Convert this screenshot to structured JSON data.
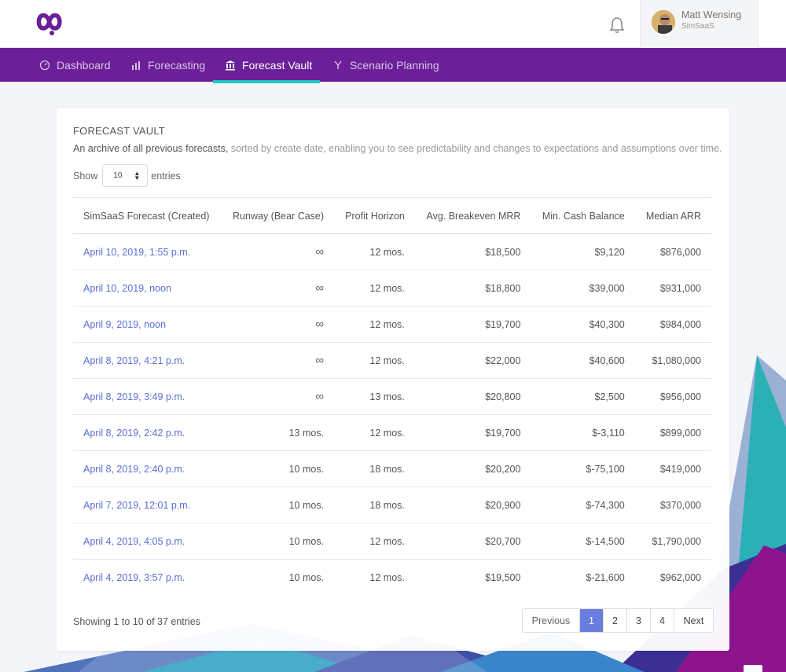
{
  "header": {
    "user_name": "Matt Wensing",
    "user_org": "SimSaaS",
    "logo_icon": "infinity-logo-icon",
    "notification_icon": "bell-icon"
  },
  "nav": {
    "items": [
      {
        "label": "Dashboard",
        "icon": "gauge-icon",
        "active": false
      },
      {
        "label": "Forecasting",
        "icon": "chart-icon",
        "active": false
      },
      {
        "label": "Forecast Vault",
        "icon": "bank-icon",
        "active": true
      },
      {
        "label": "Scenario Planning",
        "icon": "fork-icon",
        "active": false
      }
    ]
  },
  "vault": {
    "title": "FORECAST VAULT",
    "desc_lead": "An archive of all previous forecasts,",
    "desc_rest": " sorted by create date, enabling you to see predictability and changes to expectations and assumptions over time.",
    "show_label": "Show",
    "entries_value": "10",
    "entries_label": "entries",
    "columns": [
      "SimSaaS Forecast (Created)",
      "Runway (Bear Case)",
      "Profit Horizon",
      "Avg. Breakeven MRR",
      "Min. Cash Balance",
      "Median ARR"
    ],
    "rows": [
      [
        "April 10, 2019, 1:55 p.m.",
        "∞",
        "12 mos.",
        "$18,500",
        "$9,120",
        "$876,000"
      ],
      [
        "April 10, 2019, noon",
        "∞",
        "12 mos.",
        "$18,800",
        "$39,000",
        "$931,000"
      ],
      [
        "April 9, 2019, noon",
        "∞",
        "12 mos.",
        "$19,700",
        "$40,300",
        "$984,000"
      ],
      [
        "April 8, 2019, 4:21 p.m.",
        "∞",
        "12 mos.",
        "$22,000",
        "$40,600",
        "$1,080,000"
      ],
      [
        "April 8, 2019, 3:49 p.m.",
        "∞",
        "13 mos.",
        "$20,800",
        "$2,500",
        "$956,000"
      ],
      [
        "April 8, 2019, 2:42 p.m.",
        "13 mos.",
        "12 mos.",
        "$19,700",
        "$-3,110",
        "$899,000"
      ],
      [
        "April 8, 2019, 2:40 p.m.",
        "10 mos.",
        "18 mos.",
        "$20,200",
        "$-75,100",
        "$419,000"
      ],
      [
        "April 7, 2019, 12:01 p.m.",
        "10 mos.",
        "18 mos.",
        "$20,900",
        "$-74,300",
        "$370,000"
      ],
      [
        "April 4, 2019, 4:05 p.m.",
        "10 mos.",
        "12 mos.",
        "$20,700",
        "$-14,500",
        "$1,790,000"
      ],
      [
        "April 4, 2019, 3:57 p.m.",
        "10 mos.",
        "12 mos.",
        "$19,500",
        "$-21,600",
        "$962,000"
      ]
    ],
    "showing_text": "Showing 1 to 10 of 37 entries",
    "pagination": {
      "previous": "Previous",
      "pages": [
        "1",
        "2",
        "3",
        "4"
      ],
      "active_page": "1",
      "next": "Next"
    }
  },
  "colors": {
    "nav_bg": "#6b1f98",
    "nav_active_underline": "#22c8c0",
    "link": "#5a6fd6",
    "active_page": "#6a7ee0"
  }
}
